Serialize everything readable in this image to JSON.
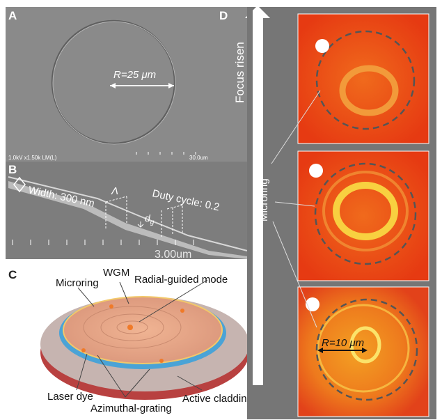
{
  "panel_a": {
    "label": "A",
    "radius_label": "R=25 μm",
    "sem_info": "1.0kV x1.50k LM(L)",
    "scale": "30.0um"
  },
  "panel_b": {
    "label": "B",
    "width_label": "Width: 300 nm",
    "period": "Λ",
    "duty_cycle": "Duty cycle: 0.2",
    "depth": "d",
    "depth_subscript": "g",
    "scale": "3.00um"
  },
  "panel_c": {
    "label": "C",
    "labels": [
      "WGM",
      "Microring",
      "Radial-guided mode",
      "Laser dye",
      "Azimuthal-grating",
      "Active cladding"
    ]
  },
  "panel_d": {
    "label": "D",
    "arrow_label": "Focus risen",
    "pointer_label": "Microring",
    "radius_label": "R=10 μm"
  }
}
